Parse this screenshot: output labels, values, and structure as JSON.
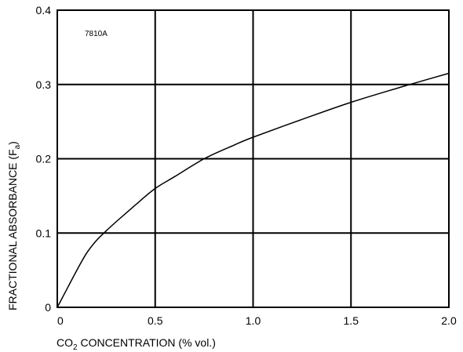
{
  "chart_data": {
    "type": "line",
    "figure_code": "7810A",
    "xlabel_main": "CO",
    "xlabel_sub": "2",
    "xlabel_rest": " CONCENTRATION (% vol.)",
    "ylabel_main": "FRACTIONAL  ABSORBANCE (F",
    "ylabel_sub": "a",
    "ylabel_rest": ")",
    "xlim": [
      0,
      2.0
    ],
    "ylim": [
      0,
      0.4
    ],
    "x_ticks": [
      0,
      0.5,
      1.0,
      1.5,
      2.0
    ],
    "x_tick_labels": [
      "0",
      "0.5",
      "1.0",
      "1.5",
      "2.0"
    ],
    "y_ticks": [
      0,
      0.1,
      0.2,
      0.3,
      0.4
    ],
    "y_tick_labels": [
      "0",
      "0.1",
      "0.2",
      "0.3",
      "0.4"
    ],
    "grid": true,
    "series": [
      {
        "x": [
          0,
          0.05,
          0.1,
          0.15,
          0.2,
          0.25,
          0.3,
          0.4,
          0.5,
          0.6,
          0.75,
          0.9,
          1.0,
          1.25,
          1.5,
          1.75,
          1.8,
          2.0
        ],
        "y": [
          0,
          0.025,
          0.05,
          0.073,
          0.09,
          0.103,
          0.115,
          0.138,
          0.16,
          0.176,
          0.2,
          0.218,
          0.229,
          0.253,
          0.276,
          0.296,
          0.3,
          0.315
        ]
      }
    ],
    "colors": {
      "line": "#000000",
      "grid": "#000000"
    }
  }
}
